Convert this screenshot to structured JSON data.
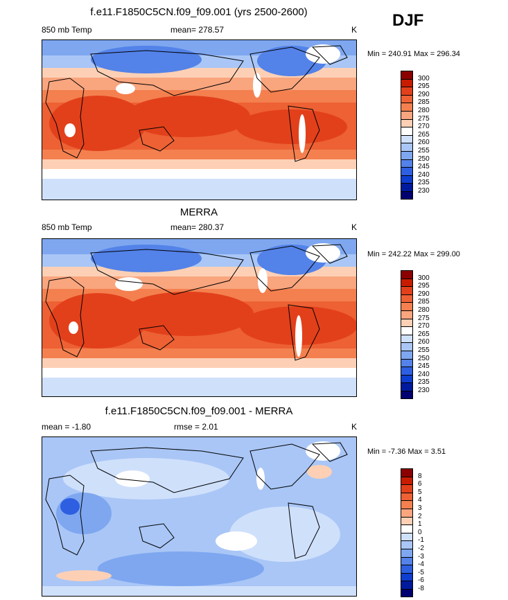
{
  "season": "DJF",
  "panels": [
    {
      "title": "f.e11.F1850C5CN.f09_f09.001 (yrs 2500-2600)",
      "left_label": "850 mb Temp",
      "mid_label": "mean= 278.57",
      "unit": "K",
      "minmax": "Min = 240.91 Max = 296.34",
      "levels": [
        "300",
        "295",
        "290",
        "285",
        "280",
        "275",
        "270",
        "265",
        "260",
        "255",
        "250",
        "245",
        "240",
        "235",
        "230"
      ]
    },
    {
      "title": "MERRA",
      "left_label": "850 mb Temp",
      "mid_label": "mean= 280.37",
      "unit": "K",
      "minmax": "Min = 242.22 Max = 299.00",
      "levels": [
        "300",
        "295",
        "290",
        "285",
        "280",
        "275",
        "270",
        "265",
        "260",
        "255",
        "250",
        "245",
        "240",
        "235",
        "230"
      ]
    },
    {
      "title": "f.e11.F1850C5CN.f09_f09.001 - MERRA",
      "left_label": "mean =  -1.80",
      "mid_label": "rmse =   2.01",
      "unit": "K",
      "minmax": "Min =  -7.36 Max =   3.51",
      "levels": [
        "8",
        "6",
        "5",
        "4",
        "3",
        "2",
        "1",
        "0",
        "-1",
        "-2",
        "-3",
        "-4",
        "-5",
        "-6",
        "-8"
      ]
    }
  ],
  "colors": {
    "abs_scale": [
      "#8b0000",
      "#c81c00",
      "#e2401b",
      "#ed6134",
      "#f4804f",
      "#f9a57e",
      "#fdd0b5",
      "#ffffff",
      "#cfe0fb",
      "#a9c6f6",
      "#7ea7f0",
      "#5382e8",
      "#2d5fe0",
      "#0e3ecf",
      "#001a9e",
      "#000070"
    ],
    "diff_scale": [
      "#8b0000",
      "#c81c00",
      "#e2401b",
      "#ed6134",
      "#f4804f",
      "#f9a57e",
      "#fdd0b5",
      "#ffffff",
      "#cfe0fb",
      "#a9c6f6",
      "#7ea7f0",
      "#5382e8",
      "#2d5fe0",
      "#0e3ecf",
      "#001a9e",
      "#000070"
    ]
  },
  "chart_data": [
    {
      "type": "heatmap",
      "title": "f.e11.F1850C5CN.f09_f09.001 (yrs 2500-2600)",
      "variable": "850 mb Temp",
      "unit": "K",
      "mean": 278.57,
      "min": 240.91,
      "max": 296.34,
      "contour_levels": [
        230,
        235,
        240,
        245,
        250,
        255,
        260,
        265,
        270,
        275,
        280,
        285,
        290,
        295,
        300
      ]
    },
    {
      "type": "heatmap",
      "title": "MERRA",
      "variable": "850 mb Temp",
      "unit": "K",
      "mean": 280.37,
      "min": 242.22,
      "max": 299.0,
      "contour_levels": [
        230,
        235,
        240,
        245,
        250,
        255,
        260,
        265,
        270,
        275,
        280,
        285,
        290,
        295,
        300
      ]
    },
    {
      "type": "heatmap",
      "title": "f.e11.F1850C5CN.f09_f09.001 - MERRA",
      "unit": "K",
      "mean": -1.8,
      "rmse": 2.01,
      "min": -7.36,
      "max": 3.51,
      "contour_levels": [
        -8,
        -6,
        -5,
        -4,
        -3,
        -2,
        -1,
        0,
        1,
        2,
        3,
        4,
        5,
        6,
        8
      ]
    }
  ]
}
